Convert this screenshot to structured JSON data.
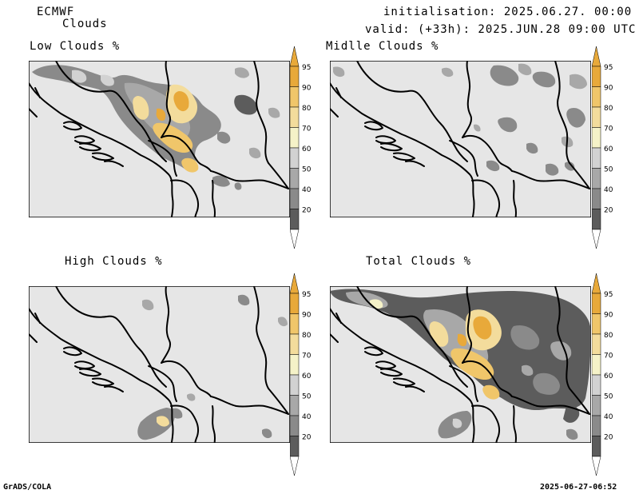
{
  "header": {
    "model": "ECMWF",
    "field": "Clouds",
    "init_label": "initialisation: 2025.06.27. 00:00 UTC",
    "valid_label": "valid: (+33h): 2025.JUN.28 09:00 UTC"
  },
  "panels": {
    "low": {
      "title": "Low Clouds %"
    },
    "middle": {
      "title": "Midlle Clouds %"
    },
    "high": {
      "title": "High Clouds %"
    },
    "total": {
      "title": "Total Clouds %"
    }
  },
  "colorbar": {
    "levels": [
      "95",
      "90",
      "80",
      "70",
      "60",
      "50",
      "40",
      "20"
    ],
    "colors": {
      "c95": "#e8a93a",
      "c90": "#f0c66a",
      "c80": "#f3dc9c",
      "c70": "#f5f2c8",
      "c60": "#d2d2d2",
      "c50": "#a8a8a8",
      "c40": "#8a8a8a",
      "c20": "#5c5c5c",
      "low": "#ffffff",
      "background": "#e6e6e6"
    }
  },
  "footer": {
    "left": "GrADS/COLA",
    "right": "2025-06-27-06:52"
  }
}
